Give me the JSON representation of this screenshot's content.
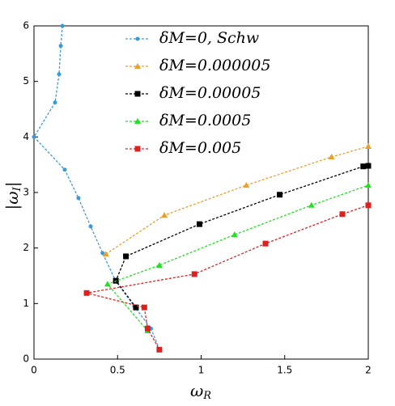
{
  "chart_data": {
    "type": "line",
    "xlabel": "ω",
    "xlabel_sub": "R",
    "ylabel": "|ω",
    "ylabel_sub": "I",
    "ylabel_end": "|",
    "xlim": [
      0,
      2
    ],
    "ylim": [
      0,
      6
    ],
    "xticks": [
      0,
      0.5,
      1,
      1.5,
      2
    ],
    "yticks": [
      0,
      1,
      2,
      3,
      4,
      5,
      6
    ],
    "legend": "top",
    "series": [
      {
        "name": "δM=0, Schw",
        "color": "#3a9ad9",
        "marker": "circle",
        "x": [
          0.17,
          0.16,
          0.15,
          0.126,
          0,
          0.184,
          0.266,
          0.339,
          0.41,
          0.49,
          0.6,
          0.7,
          0.75
        ],
        "values": [
          6.0,
          5.64,
          5.13,
          4.62,
          4.0,
          3.41,
          2.9,
          2.39,
          1.91,
          1.4,
          0.95,
          0.55,
          0.18
        ]
      },
      {
        "name": "δM=0.000005",
        "color": "#e8a030",
        "marker": "triangle",
        "x": [
          0.43,
          0.78,
          1.27,
          1.78,
          2.0
        ],
        "values": [
          1.89,
          2.59,
          3.13,
          3.64,
          3.83
        ]
      },
      {
        "name": "δM=0.00005",
        "color": "#000000",
        "marker": "square",
        "x": [
          0.61,
          0.49,
          0.55,
          0.99,
          1.47,
          1.97,
          2.0
        ],
        "values": [
          0.93,
          1.41,
          1.85,
          2.43,
          2.96,
          3.47,
          3.48
        ]
      },
      {
        "name": "δM=0.0005",
        "color": "#22e022",
        "marker": "triangle",
        "x": [
          0.68,
          0.44,
          0.75,
          1.2,
          1.66,
          2.0
        ],
        "values": [
          0.51,
          1.35,
          1.69,
          2.24,
          2.77,
          3.13
        ]
      },
      {
        "name": "δM=0.005",
        "color": "#e02020",
        "marker": "square",
        "x": [
          2.0,
          1.845,
          1.385,
          0.96,
          0.315,
          0.66,
          0.68,
          0.75
        ],
        "values": [
          2.77,
          2.61,
          2.08,
          1.53,
          1.19,
          0.93,
          0.55,
          0.17
        ]
      }
    ]
  }
}
